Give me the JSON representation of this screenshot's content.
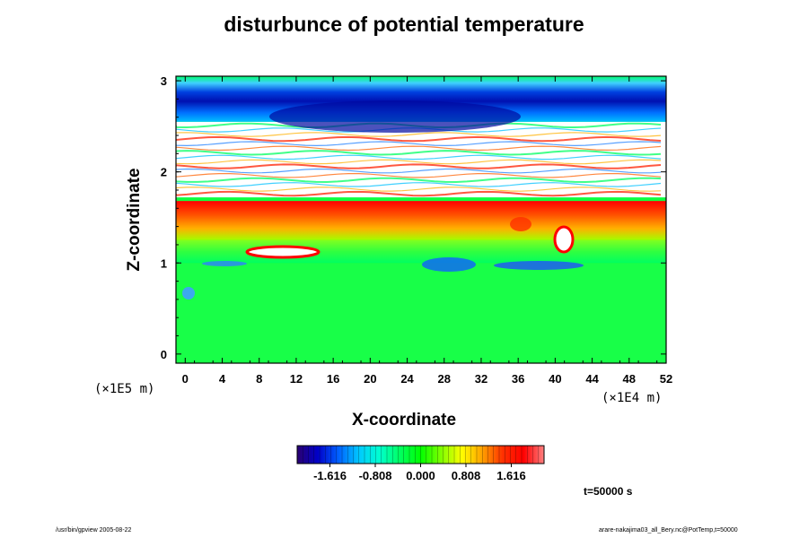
{
  "chart_data": {
    "type": "heatmap",
    "title": "disturbunce of potential temperature",
    "xlabel": "X-coordinate",
    "ylabel": "Z-coordinate",
    "x_scale_note": "(×1E4 m)",
    "y_scale_note": "(×1E5 m)",
    "xlim": [
      -1,
      52
    ],
    "ylim": [
      -0.1,
      3.05
    ],
    "x_ticks": [
      0,
      4,
      8,
      12,
      16,
      20,
      24,
      28,
      32,
      36,
      40,
      44,
      48,
      52
    ],
    "y_ticks": [
      0,
      1,
      2,
      3
    ],
    "colorbar": {
      "tick_values": [
        -1.616,
        -0.808,
        0.0,
        0.808,
        1.616
      ],
      "tick_labels": [
        "-1.616",
        "-0.808",
        "0.000",
        "0.808",
        "1.616"
      ],
      "range": [
        -2.2,
        2.2
      ],
      "colors": [
        "#2a0070",
        "#0000c8",
        "#0060ff",
        "#00c8ff",
        "#00ffd0",
        "#00ff60",
        "#00ff00",
        "#80ff00",
        "#ffff00",
        "#ffa000",
        "#ff3000",
        "#ff0000",
        "#ff8080"
      ]
    },
    "bands": [
      {
        "z": [
          2.55,
          3.05
        ],
        "value": 0.0
      },
      {
        "z": [
          2.62,
          2.92
        ],
        "value": -1.6
      },
      {
        "z": [
          1.72,
          2.55
        ],
        "value": 3.0
      },
      {
        "z": [
          1.25,
          1.68
        ],
        "value": 1.4
      },
      {
        "z": [
          1.0,
          1.25
        ],
        "value": 0.35
      },
      {
        "z": [
          -0.1,
          1.0
        ],
        "value": 0.05
      }
    ],
    "annotation": "t=50000 s"
  },
  "footer": {
    "left": "/usr/bin/gpview 2005-08-22",
    "right": "arare-nakajima03_all_Bery.nc@PotTemp,t=50000"
  }
}
